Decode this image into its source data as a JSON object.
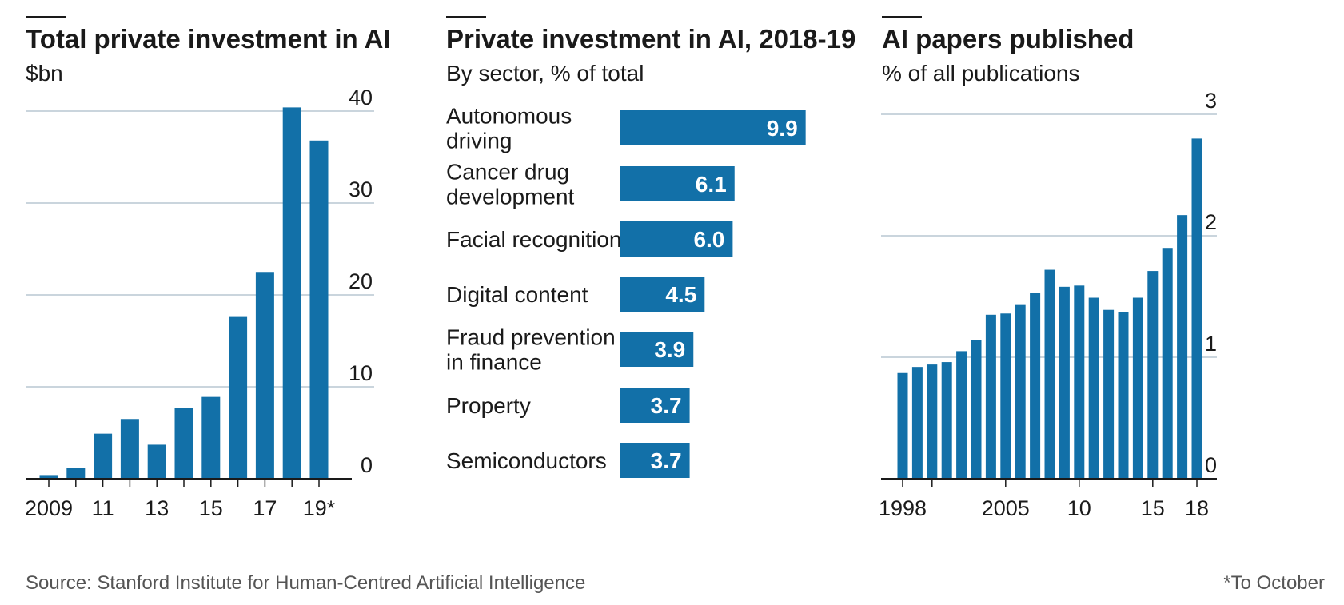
{
  "colors": {
    "bar": "#1270a8",
    "grid": "#b9c7d2",
    "axis": "#1a1a1a"
  },
  "chart_data": [
    {
      "type": "bar",
      "title": "Total private investment in AI",
      "subtitle": "$bn",
      "x": [
        2009,
        2010,
        2011,
        2012,
        2013,
        2014,
        2015,
        2016,
        2017,
        2018,
        2019
      ],
      "values": [
        0.4,
        1.2,
        4.9,
        6.5,
        3.7,
        7.7,
        8.9,
        17.6,
        22.5,
        40.4,
        36.8
      ],
      "x_tick_labels": [
        {
          "x": 2009,
          "label": "2009"
        },
        {
          "x": 2011,
          "label": "11"
        },
        {
          "x": 2013,
          "label": "13"
        },
        {
          "x": 2015,
          "label": "15"
        },
        {
          "x": 2017,
          "label": "17"
        },
        {
          "x": 2019,
          "label": "19*"
        }
      ],
      "y_ticks": [
        0,
        10,
        20,
        30,
        40
      ],
      "ylim": [
        0,
        40
      ],
      "grid": true,
      "y_axis_side": "right"
    },
    {
      "type": "bar",
      "orientation": "horizontal",
      "title": "Private investment in AI, 2018-19",
      "subtitle": "By sector, % of total",
      "categories": [
        [
          "Autonomous",
          "driving"
        ],
        [
          "Cancer drug",
          "development"
        ],
        [
          "Facial recognition"
        ],
        [
          "Digital content"
        ],
        [
          "Fraud prevention",
          "in finance"
        ],
        [
          "Property"
        ],
        [
          "Semiconductors"
        ]
      ],
      "values": [
        9.9,
        6.1,
        6.0,
        4.5,
        3.9,
        3.7,
        3.7
      ],
      "value_labels": [
        "9.9",
        "6.1",
        "6.0",
        "4.5",
        "3.9",
        "3.7",
        "3.7"
      ]
    },
    {
      "type": "bar",
      "title": "AI papers published",
      "subtitle": "% of all publications",
      "x": [
        1998,
        1999,
        2000,
        2001,
        2002,
        2003,
        2004,
        2005,
        2006,
        2007,
        2008,
        2009,
        2010,
        2011,
        2012,
        2013,
        2014,
        2015,
        2016,
        2017,
        2018
      ],
      "values": [
        0.87,
        0.92,
        0.94,
        0.96,
        1.05,
        1.14,
        1.35,
        1.36,
        1.43,
        1.53,
        1.72,
        1.58,
        1.59,
        1.49,
        1.39,
        1.37,
        1.49,
        1.71,
        1.9,
        2.17,
        2.8
      ],
      "x_tick_labels": [
        {
          "x": 1998,
          "label": "1998"
        },
        {
          "x": 2005,
          "label": "2005"
        },
        {
          "x": 2010,
          "label": "10"
        },
        {
          "x": 2015,
          "label": "15"
        },
        {
          "x": 2018,
          "label": "18"
        }
      ],
      "x_minor_ticks": [
        1998,
        2000,
        2005,
        2010,
        2015,
        2018
      ],
      "y_ticks": [
        0,
        1,
        2,
        3
      ],
      "ylim": [
        0,
        3
      ],
      "grid": true,
      "y_axis_side": "right"
    }
  ],
  "source": "Source: Stanford Institute for Human-Centred Artificial Intelligence",
  "footnote": "*To October"
}
